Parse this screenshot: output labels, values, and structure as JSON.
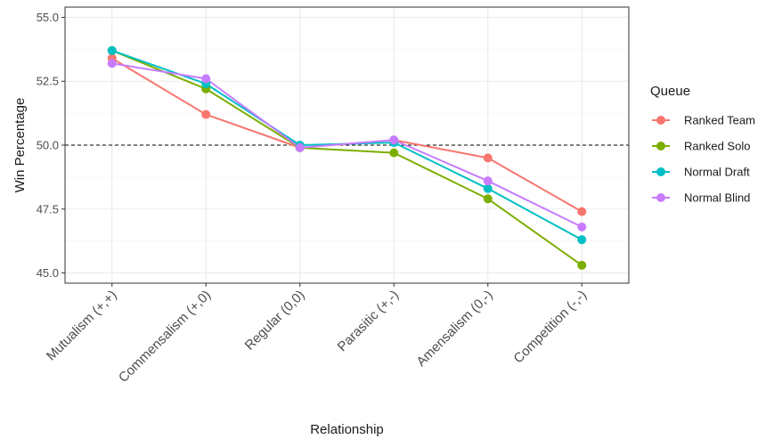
{
  "chart_data": {
    "type": "line",
    "xlabel": "Relationship",
    "ylabel": "Win Percentage",
    "categories": [
      "Mutualism (+,+)",
      "Commensalism (+,0)",
      "Regular (0,0)",
      "Parasitic (+,-)",
      "Amensalism (0,-)",
      "Competition (-,-)"
    ],
    "ylim": [
      44.6,
      55.4
    ],
    "yticks": [
      45.0,
      47.5,
      50.0,
      52.5,
      55.0
    ],
    "ytick_labels": [
      "45.0",
      "47.5",
      "50.0",
      "52.5",
      "55.0"
    ],
    "reference_line": {
      "y": 50.0,
      "style": "dashed"
    },
    "grid": true,
    "legend": {
      "title": "Queue",
      "position": "right"
    },
    "series": [
      {
        "name": "Ranked Team",
        "color": "#F8766D",
        "values": [
          53.4,
          51.2,
          49.9,
          50.2,
          49.5,
          47.4
        ]
      },
      {
        "name": "Ranked Solo",
        "color": "#7CAE00",
        "values": [
          53.7,
          52.2,
          49.9,
          49.7,
          47.9,
          45.3
        ]
      },
      {
        "name": "Normal Draft",
        "color": "#00BFC4",
        "values": [
          53.7,
          52.4,
          50.0,
          50.1,
          48.3,
          46.3
        ]
      },
      {
        "name": "Normal Blind",
        "color": "#C77CFF",
        "values": [
          53.2,
          52.6,
          49.9,
          50.2,
          48.6,
          46.8
        ]
      }
    ]
  }
}
